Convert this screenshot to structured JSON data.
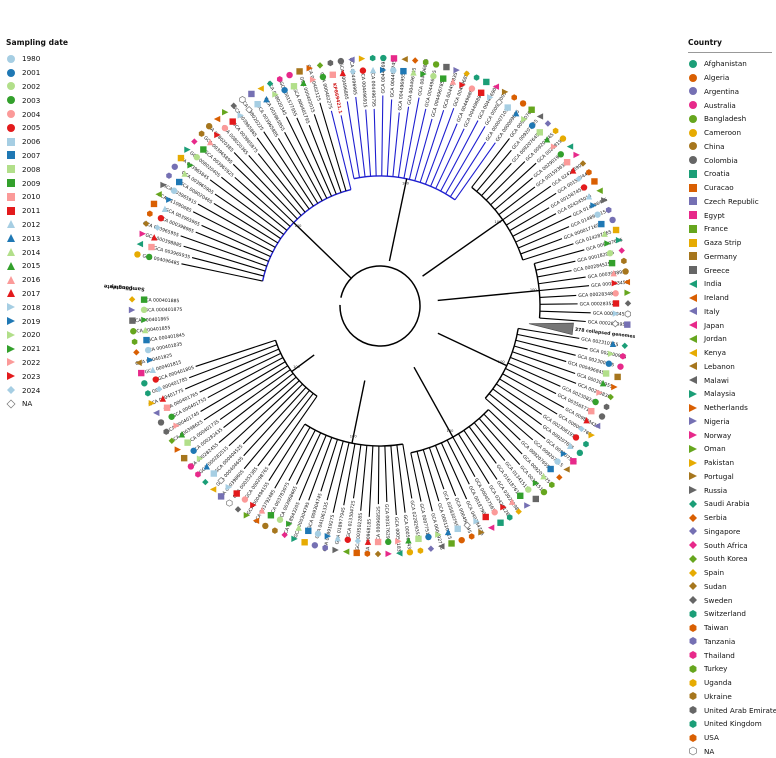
{
  "sampling_date_legend": {
    "title": "Sampling date",
    "items": [
      {
        "label": "1980",
        "color": "#a6cee3",
        "shape": "circle"
      },
      {
        "label": "2001",
        "color": "#1f78b4",
        "shape": "circle"
      },
      {
        "label": "2002",
        "color": "#b2df8a",
        "shape": "circle"
      },
      {
        "label": "2003",
        "color": "#33a02c",
        "shape": "circle"
      },
      {
        "label": "2004",
        "color": "#fb9a99",
        "shape": "circle"
      },
      {
        "label": "2005",
        "color": "#e31a1c",
        "shape": "circle"
      },
      {
        "label": "2006",
        "color": "#a6cee3",
        "shape": "square"
      },
      {
        "label": "2007",
        "color": "#1f78b4",
        "shape": "square"
      },
      {
        "label": "2008",
        "color": "#b2df8a",
        "shape": "square"
      },
      {
        "label": "2009",
        "color": "#33a02c",
        "shape": "square"
      },
      {
        "label": "2010",
        "color": "#fb9a99",
        "shape": "square"
      },
      {
        "label": "2011",
        "color": "#e31a1c",
        "shape": "square"
      },
      {
        "label": "2012",
        "color": "#a6cee3",
        "shape": "triangle"
      },
      {
        "label": "2013",
        "color": "#1f78b4",
        "shape": "triangle"
      },
      {
        "label": "2014",
        "color": "#b2df8a",
        "shape": "triangle"
      },
      {
        "label": "2015",
        "color": "#33a02c",
        "shape": "triangle"
      },
      {
        "label": "2016",
        "color": "#fb9a99",
        "shape": "triangle"
      },
      {
        "label": "2017",
        "color": "#e31a1c",
        "shape": "triangle"
      },
      {
        "label": "2018",
        "color": "#a6cee3",
        "shape": "triangle-r"
      },
      {
        "label": "2019",
        "color": "#1f78b4",
        "shape": "triangle-r"
      },
      {
        "label": "2020",
        "color": "#b2df8a",
        "shape": "triangle-r"
      },
      {
        "label": "2021",
        "color": "#33a02c",
        "shape": "triangle-r"
      },
      {
        "label": "2022",
        "color": "#fb9a99",
        "shape": "triangle-r"
      },
      {
        "label": "2023",
        "color": "#e31a1c",
        "shape": "triangle-r"
      },
      {
        "label": "2024",
        "color": "#a6cee3",
        "shape": "diamond"
      },
      {
        "label": "NA",
        "color": "#ffffff",
        "shape": "diamond"
      }
    ]
  },
  "country_legend": {
    "title": "Country",
    "items": [
      {
        "label": "Afghanistan",
        "color": "#1b9e77",
        "shape": "circle"
      },
      {
        "label": "Algeria",
        "color": "#d95f02",
        "shape": "circle"
      },
      {
        "label": "Argentina",
        "color": "#7570b3",
        "shape": "circle"
      },
      {
        "label": "Australia",
        "color": "#e7298a",
        "shape": "circle"
      },
      {
        "label": "Bangladesh",
        "color": "#66a61e",
        "shape": "circle"
      },
      {
        "label": "Cameroon",
        "color": "#e6ab02",
        "shape": "circle"
      },
      {
        "label": "China",
        "color": "#a6761d",
        "shape": "circle"
      },
      {
        "label": "Colombia",
        "color": "#666666",
        "shape": "circle"
      },
      {
        "label": "Croatia",
        "color": "#1b9e77",
        "shape": "square"
      },
      {
        "label": "Curacao",
        "color": "#d95f02",
        "shape": "square"
      },
      {
        "label": "Czech Republic",
        "color": "#7570b3",
        "shape": "square"
      },
      {
        "label": "Egypt",
        "color": "#e7298a",
        "shape": "square"
      },
      {
        "label": "France",
        "color": "#66a61e",
        "shape": "square"
      },
      {
        "label": "Gaza Strip",
        "color": "#e6ab02",
        "shape": "square"
      },
      {
        "label": "Germany",
        "color": "#a6761d",
        "shape": "square"
      },
      {
        "label": "Greece",
        "color": "#666666",
        "shape": "square"
      },
      {
        "label": "India",
        "color": "#1b9e77",
        "shape": "triangle-l"
      },
      {
        "label": "Ireland",
        "color": "#d95f02",
        "shape": "triangle-l"
      },
      {
        "label": "Italy",
        "color": "#7570b3",
        "shape": "triangle-l"
      },
      {
        "label": "Japan",
        "color": "#e7298a",
        "shape": "triangle-l"
      },
      {
        "label": "Jordan",
        "color": "#66a61e",
        "shape": "triangle-l"
      },
      {
        "label": "Kenya",
        "color": "#e6ab02",
        "shape": "triangle-l"
      },
      {
        "label": "Lebanon",
        "color": "#a6761d",
        "shape": "triangle-l"
      },
      {
        "label": "Malawi",
        "color": "#666666",
        "shape": "triangle-l"
      },
      {
        "label": "Malaysia",
        "color": "#1b9e77",
        "shape": "triangle-r"
      },
      {
        "label": "Netherlands",
        "color": "#d95f02",
        "shape": "triangle-r"
      },
      {
        "label": "Nigeria",
        "color": "#7570b3",
        "shape": "triangle-r"
      },
      {
        "label": "Norway",
        "color": "#e7298a",
        "shape": "triangle-r"
      },
      {
        "label": "Oman",
        "color": "#66a61e",
        "shape": "triangle-r"
      },
      {
        "label": "Pakistan",
        "color": "#e6ab02",
        "shape": "triangle-r"
      },
      {
        "label": "Portugal",
        "color": "#a6761d",
        "shape": "triangle-r"
      },
      {
        "label": "Russia",
        "color": "#666666",
        "shape": "triangle-r"
      },
      {
        "label": "Saudi Arabia",
        "color": "#1b9e77",
        "shape": "diamond"
      },
      {
        "label": "Serbia",
        "color": "#d95f02",
        "shape": "diamond"
      },
      {
        "label": "Singapore",
        "color": "#7570b3",
        "shape": "diamond"
      },
      {
        "label": "South Africa",
        "color": "#e7298a",
        "shape": "diamond"
      },
      {
        "label": "South Korea",
        "color": "#66a61e",
        "shape": "diamond"
      },
      {
        "label": "Spain",
        "color": "#e6ab02",
        "shape": "diamond"
      },
      {
        "label": "Sudan",
        "color": "#a6761d",
        "shape": "diamond"
      },
      {
        "label": "Sweden",
        "color": "#666666",
        "shape": "diamond"
      },
      {
        "label": "Switzerland",
        "color": "#1b9e77",
        "shape": "hexagon"
      },
      {
        "label": "Taiwan",
        "color": "#d95f02",
        "shape": "hexagon"
      },
      {
        "label": "Tanzania",
        "color": "#7570b3",
        "shape": "hexagon"
      },
      {
        "label": "Thailand",
        "color": "#e7298a",
        "shape": "hexagon"
      },
      {
        "label": "Turkey",
        "color": "#66a61e",
        "shape": "hexagon"
      },
      {
        "label": "Uganda",
        "color": "#e6ab02",
        "shape": "hexagon"
      },
      {
        "label": "Ukraine",
        "color": "#a6761d",
        "shape": "hexagon"
      },
      {
        "label": "United Arab Emirates",
        "color": "#666666",
        "shape": "hexagon"
      },
      {
        "label": "United Kingdom",
        "color": "#1b9e77",
        "shape": "hexagon"
      },
      {
        "label": "USA",
        "color": "#d95f02",
        "shape": "hexagon"
      },
      {
        "label": "NA",
        "color": "#ffffff",
        "shape": "hexagon"
      }
    ]
  },
  "tree": {
    "ring_labels": [
      "Sampling date",
      "Country"
    ],
    "collapsed_label": "378 collapsed genomes",
    "highlight_tip": "KP869421.1",
    "highlight_color": "#d01a1a",
    "clade_color": "#1f1fd0",
    "tips": [
      "GCA 004096485",
      "GCA 003965935",
      "GCA 000398885",
      "GCA 003965955",
      "GCA 000398965",
      "GCA 003965965",
      "GCA 011090685",
      "GCA 003965915",
      "GCA 008020465",
      "GCA 003965905",
      "GCA 003965845",
      "GCA 008020405",
      "GCA 003965925",
      "GCA 003965895",
      "GCA 008020385",
      "GCA 008020365",
      "GCA 003965875",
      "GCA 003965865",
      "GCA 008020225",
      "GCA 003965885",
      "GCA 003965855",
      "GCA 008020345",
      "GCA 001577955",
      "GCA 000401795",
      "GCA 000402015",
      "GCA 000402125",
      "GCA 000402275",
      "KP869421.1",
      "GCA 000496805",
      "GCA 004496965",
      "GCA 004496915",
      "GCA 004496795",
      "GCA 004496935",
      "GCA 004496745",
      "GCA 004496955",
      "GCA 004496765",
      "GCA 004496815",
      "GCA 004496705",
      "GCA 004496785",
      "GCA 004496835",
      "GCA 004496855",
      "GCA 004496865",
      "GCA 004496885",
      "GCA 004496905",
      "GCA 000007005",
      "GCA 000007105",
      "GCA 000009635",
      "GCA 009207605",
      "GCA 009207625",
      "GCA 009207645",
      "GCA 009207665",
      "GCA 002181905",
      "GCA 002901955",
      "GCA 001593635",
      "GCA 024286905",
      "GCA 001587445",
      "GCA 001587455",
      "GCA 024245015",
      "GCA 014896495",
      "GCA 014896415",
      "GCA 000017165",
      "GCA 024287165",
      "GCA 009207695",
      "GCA 000182925",
      "GCA 000284525",
      "GCA 000398895",
      "GCA 000283455",
      "GCA 000283485",
      "GCA 000283525",
      "GCA 000284555",
      "GCA 000283595",
      "378 collapsed genomes",
      "GCA 002310155",
      "GCA 002300925",
      "GCA 002300945",
      "GCA 000496845",
      "GCA 000308955",
      "GCA 002308365",
      "GCA 002308245",
      "GCA 003565715",
      "GCA 009883425",
      "GCA 008008765",
      "GCA 002308195",
      "GCA 009207685",
      "GCA 009207565",
      "GCA 009207615",
      "GCA 009207655",
      "GCA 009207675",
      "GCA 003615175",
      "GCA 013415155",
      "GCA 016187615",
      "GCA 030281985",
      "GCA 024281265",
      "GCA 000457565",
      "GCA 001879025",
      "GCA 040784725",
      "GCA 000498645",
      "GCA 035830795",
      "GCA 000120115",
      "GCA 000492775",
      "GCA 000775115",
      "GCA 022829355",
      "GCA 000501435",
      "GCA 000501835",
      "GCA 003176295",
      "GCA 000968525",
      "GCA 000968185",
      "GCA 003502285",
      "GCA 013304725",
      "GCA 018977945",
      "GCA 018919275",
      "GCA 041061335",
      "GCA 009304745",
      "GCA 000304795",
      "GCA 018943205",
      "GCA 003968665",
      "GCA 003783075",
      "GCA 003792485",
      "GCA 000494155",
      "GCA 000298765",
      "GCA 000352385",
      "GCA 000398605",
      "GCA 000404605",
      "GCA 000404525",
      "GCA 000282515",
      "GCA 000282455",
      "GCA 000282435",
      "GCA 000401735",
      "GCA 000398625",
      "GCA 000401745",
      "GCA 000401755",
      "GCA 000401765",
      "GCA 000401775",
      "GCA 000401785",
      "GCA 000401805",
      "GCA 000401815",
      "GCA 000401825",
      "GCA 000401835",
      "GCA 000401845",
      "GCA 000401855",
      "GCA 000401865",
      "GCA 000401875",
      "GCA 000401885"
    ]
  }
}
